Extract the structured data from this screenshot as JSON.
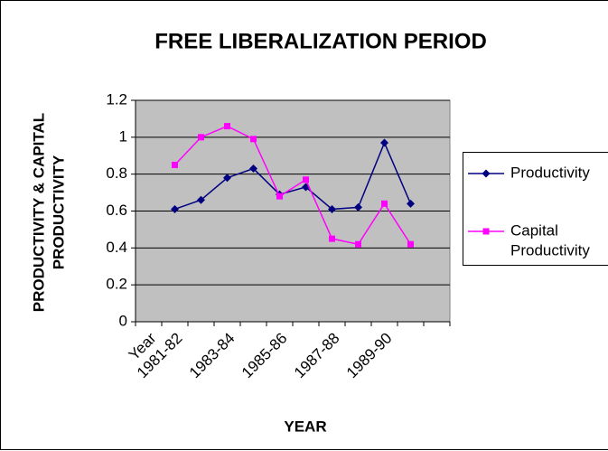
{
  "chart_data": {
    "type": "line",
    "title": "FREE LIBERALIZATION PERIOD",
    "x_label": "YEAR",
    "y_label": [
      "PRODUCTIVITY & CAPITAL",
      "PRODUCTIVITY"
    ],
    "categories": [
      "Year",
      "1981-82",
      null,
      "1983-84",
      null,
      "1985-86",
      null,
      "1987-88",
      null,
      "1989-90",
      null,
      null
    ],
    "series": [
      {
        "name": "Productivity",
        "color": "#000080",
        "marker": "diamond",
        "values": [
          null,
          0.61,
          0.66,
          0.78,
          0.83,
          0.69,
          0.73,
          0.61,
          0.62,
          0.97,
          0.64,
          null
        ]
      },
      {
        "name": [
          "Capital",
          "Productivity"
        ],
        "color": "#ff00ff",
        "marker": "square",
        "values": [
          null,
          0.85,
          1.0,
          1.06,
          0.99,
          0.68,
          0.77,
          0.45,
          0.42,
          0.64,
          0.42,
          null
        ]
      }
    ],
    "ylim": [
      0,
      1.2
    ],
    "yticks": [
      0,
      0.2,
      0.4,
      0.6,
      0.8,
      1,
      1.2
    ],
    "grid": true,
    "legend": "right"
  }
}
